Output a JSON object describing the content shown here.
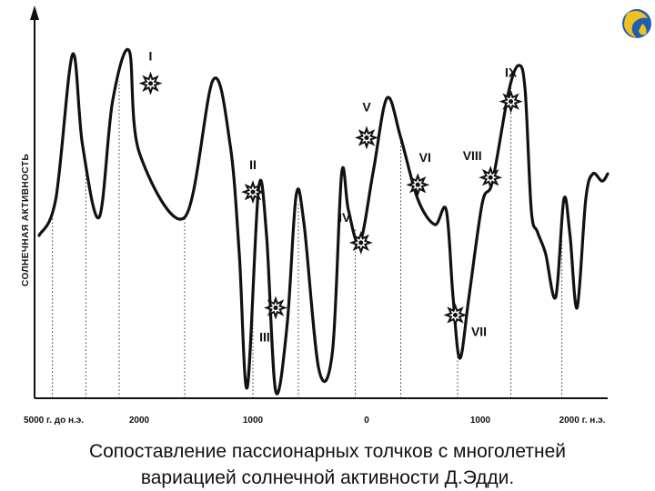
{
  "chart_data": {
    "type": "line",
    "title": "",
    "ylabel": "СОЛНЕЧНАЯ АКТИВНОСТЬ",
    "xlabel": "",
    "x_ticks": [
      {
        "value": -5000,
        "label": "5000 г. до н.э."
      },
      {
        "value": -2000,
        "label": "2000"
      },
      {
        "value": -1000,
        "label": "1000"
      },
      {
        "value": 0,
        "label": "0"
      },
      {
        "value": 1000,
        "label": "1000"
      },
      {
        "value": 2000,
        "label": "2000 г. н.э."
      }
    ],
    "y_unit": "relative",
    "ylim": [
      0,
      100
    ],
    "series": [
      {
        "x": [
          -5000,
          -4500,
          -4000,
          -3700,
          -3200,
          -2800,
          -2300,
          -2000,
          -1600,
          -1350,
          -1200,
          -1120,
          -1050,
          -950,
          -880,
          -800,
          -700,
          -620,
          -550,
          -420,
          -300,
          -220,
          -160,
          -60,
          60,
          180,
          300,
          450,
          600,
          700,
          760,
          820,
          900,
          1020,
          1120,
          1280,
          1380,
          1440,
          1500,
          1560,
          1640,
          1740,
          1820,
          1880,
          1950,
          2050,
          2150,
          2280,
          2360
        ],
        "y": [
          45,
          55,
          95,
          70,
          50,
          82,
          96,
          68,
          50,
          88,
          70,
          40,
          3,
          58,
          45,
          2,
          20,
          56,
          48,
          8,
          13,
          62,
          52,
          43,
          63,
          83,
          72,
          55,
          48,
          52,
          28,
          11,
          28,
          54,
          60,
          85,
          92,
          85,
          52,
          46,
          40,
          28,
          55,
          45,
          25,
          55,
          62,
          60,
          62
        ]
      }
    ],
    "vertical_lines": [
      -4600,
      -3600,
      -2600,
      -1600,
      -1000,
      -600,
      -100,
      300,
      800,
      1300,
      1800
    ],
    "markers": [
      {
        "label": "I",
        "x": -1900,
        "y": 87
      },
      {
        "label": "II",
        "x": -1000,
        "y": 57
      },
      {
        "label": "III",
        "x": -800,
        "y": 25
      },
      {
        "label": "IV",
        "x": -50,
        "y": 43
      },
      {
        "label": "V",
        "x": 0,
        "y": 72
      },
      {
        "label": "VI",
        "x": 450,
        "y": 59
      },
      {
        "label": "VII",
        "x": 780,
        "y": 23
      },
      {
        "label": "VIII",
        "x": 1100,
        "y": 61
      },
      {
        "label": "IX",
        "x": 1300,
        "y": 82
      }
    ]
  },
  "caption": {
    "line1": "Сопоставление пассионарных толчков с многолетней",
    "line2": "вариацией солнечной активности Д.Эдди."
  },
  "colors": {
    "line": "#111111",
    "logo_blue": "#1f5fb0",
    "logo_gold": "#f0c020"
  }
}
